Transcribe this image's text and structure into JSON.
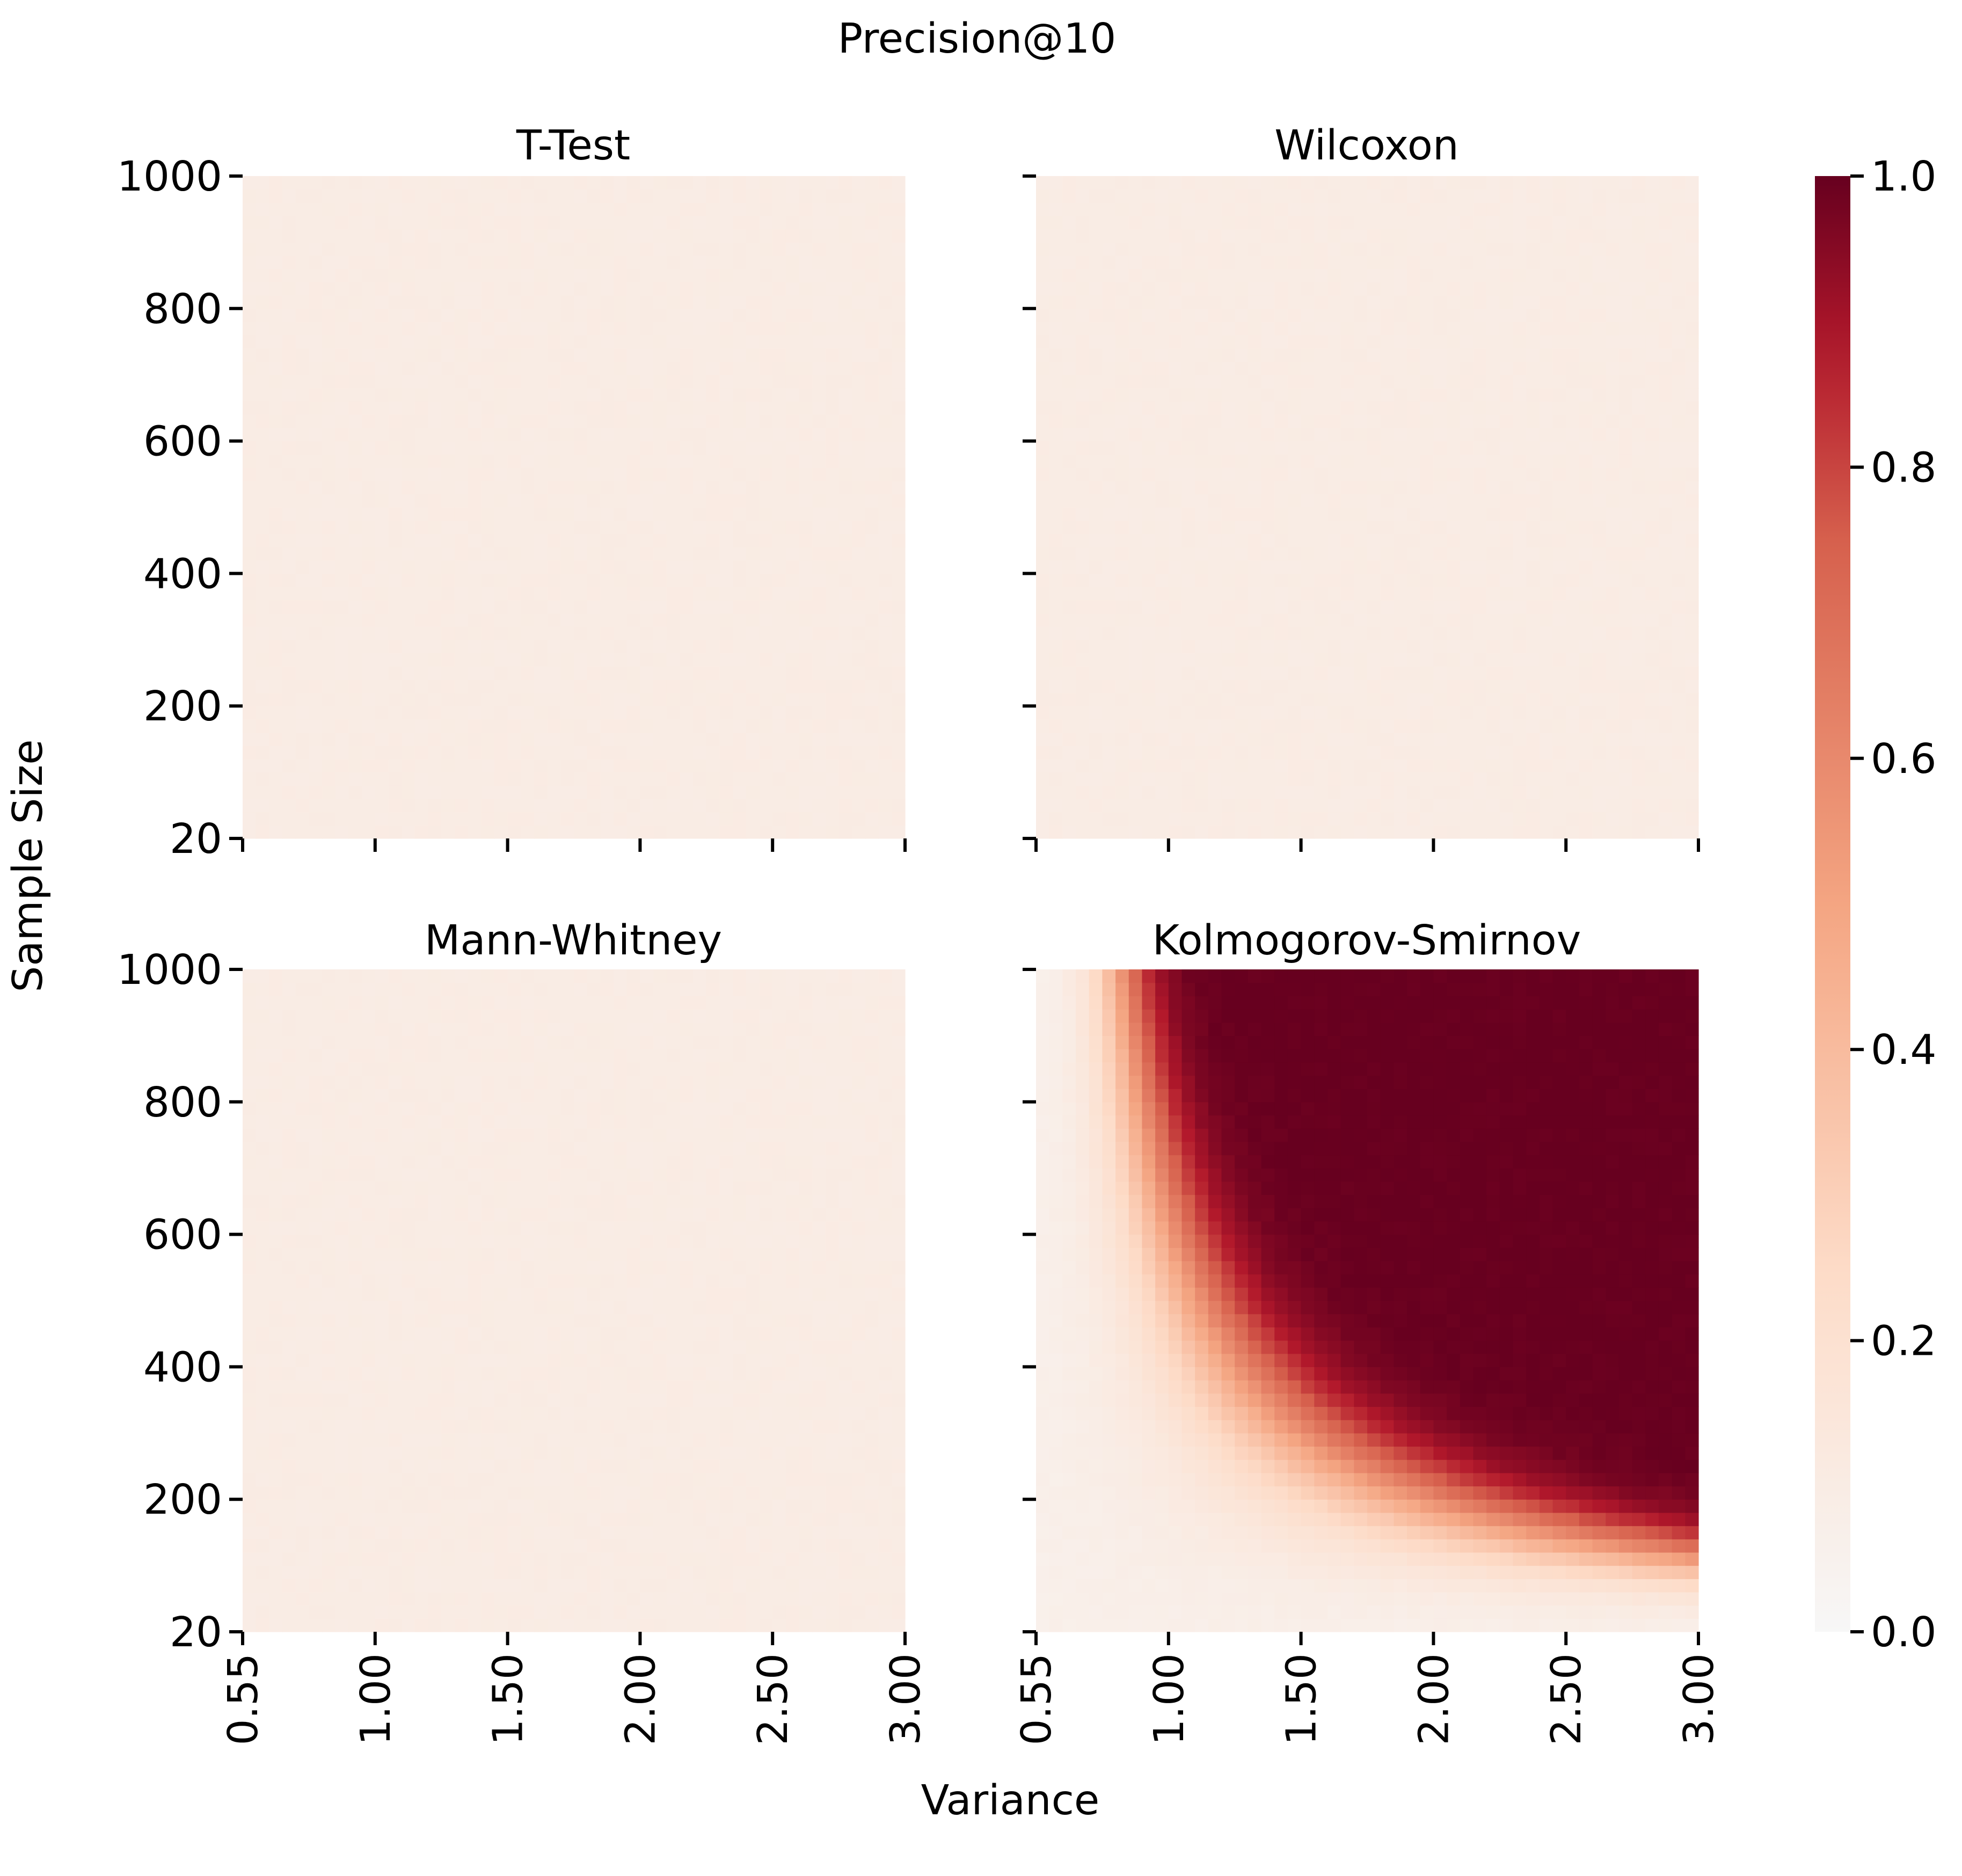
{
  "chart_data": {
    "type": "heatmap",
    "title": "Precision@10",
    "xlabel": "Variance",
    "ylabel": "Sample Size",
    "x_tick_labels": [
      "0.55",
      "1.00",
      "1.50",
      "2.00",
      "2.50",
      "3.00"
    ],
    "y_tick_labels": [
      "1000",
      "800",
      "600",
      "400",
      "200",
      "20"
    ],
    "x_range": [
      0.55,
      3.0
    ],
    "y_range": [
      20,
      1000
    ],
    "x_step": 0.05,
    "y_step": 20,
    "colormap": "RdBu_r (upper half)",
    "colorbar": {
      "range": [
        0.0,
        1.0
      ],
      "tick_labels": [
        "0.0",
        "0.2",
        "0.4",
        "0.6",
        "0.8",
        "1.0"
      ]
    },
    "panels": [
      {
        "title": "T-Test",
        "model": "baseline",
        "base_value": 0.1
      },
      {
        "title": "Wilcoxon",
        "model": "baseline",
        "base_value": 0.1
      },
      {
        "title": "Mann-Whitney",
        "model": "baseline",
        "base_value": 0.1
      },
      {
        "title": "Kolmogorov-Smirnov",
        "model": "detection",
        "base_value": 0.08,
        "note_values": [
          {
            "variance": 0.55,
            "sample_size": 1000,
            "value": 0.1
          },
          {
            "variance": 0.85,
            "sample_size": 1000,
            "value": 0.75
          },
          {
            "variance": 1.25,
            "sample_size": 1000,
            "value": 1.0
          },
          {
            "variance": 2.0,
            "sample_size": 400,
            "value": 1.0
          },
          {
            "variance": 3.0,
            "sample_size": 200,
            "value": 0.95
          },
          {
            "variance": 3.0,
            "sample_size": 100,
            "value": 0.45
          },
          {
            "variance": 3.0,
            "sample_size": 40,
            "value": 0.2
          }
        ]
      }
    ],
    "grid": false,
    "legend": "colorbar right"
  }
}
